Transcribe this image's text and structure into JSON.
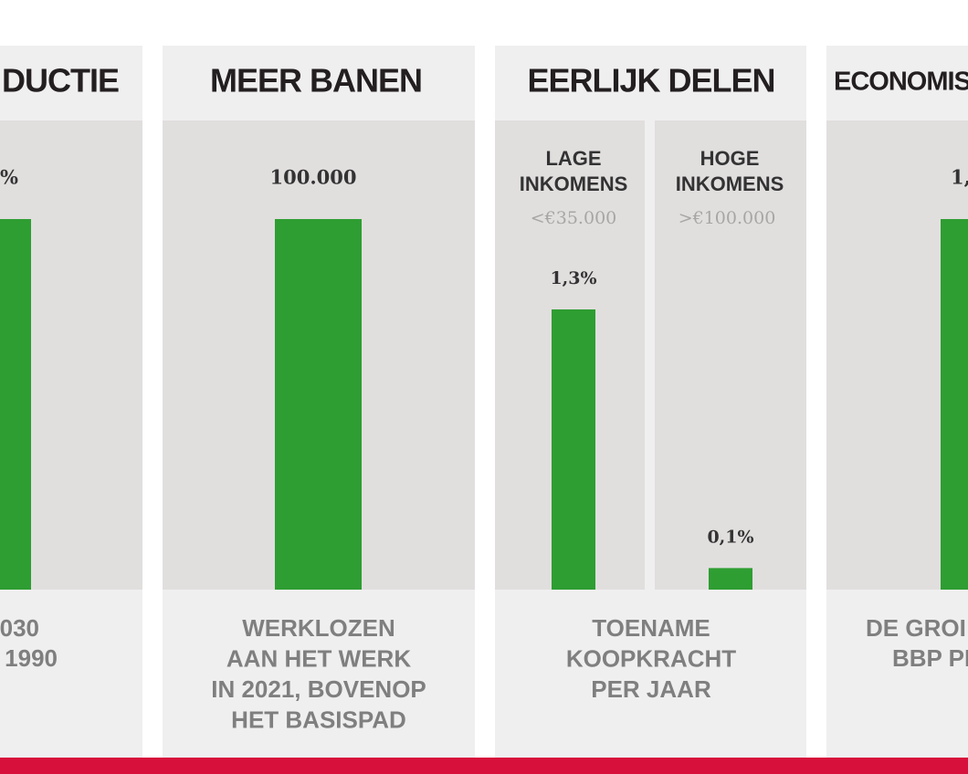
{
  "panels": [
    {
      "title": "DUCTIE",
      "value_label": "%",
      "caption": [
        "030",
        "1990"
      ]
    },
    {
      "title": "MEER BANEN",
      "value": 100000,
      "value_label": "100.000",
      "ylim": [
        0,
        100000
      ],
      "caption": [
        "WERKLOZEN",
        "AAN HET WERK",
        "IN 2021, BOVENOP",
        "HET BASISPAD"
      ]
    },
    {
      "title": "EERLIJK DELEN",
      "ylim": [
        0,
        1.3
      ],
      "groups": [
        {
          "label": [
            "LAGE",
            "INKOMENS"
          ],
          "range": "<€35.000",
          "value": 1.3,
          "value_label": "1,3%"
        },
        {
          "label": [
            "HOGE",
            "INKOMENS"
          ],
          "range": ">€100.000",
          "value": 0.1,
          "value_label": "0,1%"
        }
      ],
      "caption": [
        "TOENAME",
        "KOOPKRACHT",
        "PER JAAR"
      ]
    },
    {
      "title": "ECONOMIS",
      "value_label": "1,",
      "caption": [
        "DE GROI",
        "BBP PI"
      ]
    }
  ]
}
